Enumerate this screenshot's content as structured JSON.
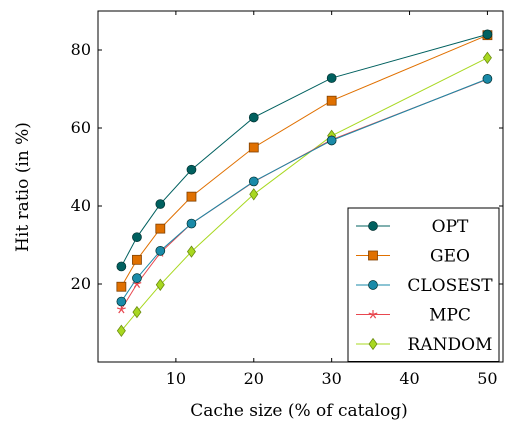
{
  "chart_data": {
    "type": "line",
    "xlabel": "Cache size (% of catalog)",
    "ylabel": "Hit ratio (in %)",
    "xlim": [
      0,
      52
    ],
    "ylim": [
      0,
      90
    ],
    "x_ticks": [
      10,
      20,
      30,
      40,
      50
    ],
    "y_ticks": [
      20,
      40,
      60,
      80
    ],
    "x_tick_labels": [
      "10",
      "20",
      "30",
      "40",
      "50"
    ],
    "y_tick_labels": [
      "20",
      "40",
      "60",
      "80"
    ],
    "x": [
      3,
      5,
      8,
      12,
      20,
      30,
      50
    ],
    "grid": false,
    "legend_position": "bottom-right",
    "series": [
      {
        "name": "OPT",
        "color": "#00605f",
        "marker": "circle",
        "values": [
          24.5,
          32,
          40.5,
          49.3,
          62.7,
          72.8,
          84
        ]
      },
      {
        "name": "GEO",
        "color": "#e07000",
        "marker": "square",
        "values": [
          19.3,
          26.2,
          34.2,
          42.4,
          55,
          67,
          83.8
        ]
      },
      {
        "name": "CLOSEST",
        "color": "#1a8aa8",
        "marker": "circle",
        "values": [
          15.5,
          21.5,
          28.5,
          35.5,
          46.3,
          56.8,
          72.6
        ]
      },
      {
        "name": "MPC",
        "color": "#e8474f",
        "marker": "star",
        "values": [
          13.5,
          20,
          28,
          35.5,
          46.2,
          57,
          72.5
        ]
      },
      {
        "name": "RANDOM",
        "color": "#a8d820",
        "marker": "diamond",
        "values": [
          8,
          12.8,
          19.8,
          28.3,
          43,
          58,
          78
        ]
      }
    ]
  }
}
